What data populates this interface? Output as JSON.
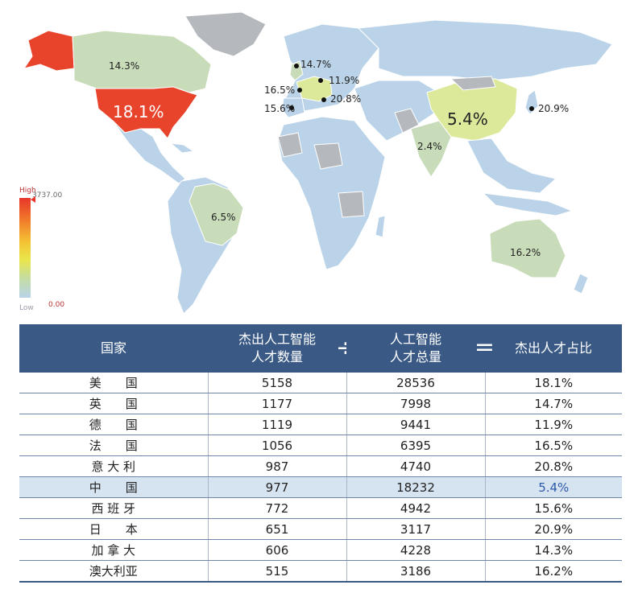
{
  "chart_data": [
    {
      "type": "map",
      "region_labels": [
        {
          "country": "美国",
          "value": "18.1%",
          "highlight": true
        },
        {
          "country": "加拿大",
          "value": "14.3%"
        },
        {
          "country": "英国",
          "value": "14.7%"
        },
        {
          "country": "德国",
          "value": "11.9%"
        },
        {
          "country": "法国",
          "value": "16.5%"
        },
        {
          "country": "意大利",
          "value": "20.8%"
        },
        {
          "country": "西班牙",
          "value": "15.6%"
        },
        {
          "country": "中国",
          "value": "5.4%"
        },
        {
          "country": "日本",
          "value": "20.9%"
        },
        {
          "country": "印度",
          "value": "2.4%"
        },
        {
          "country": "巴西",
          "value": "6.5%"
        },
        {
          "country": "澳大利亚",
          "value": "16.2%"
        }
      ],
      "legend": {
        "high_label": "High",
        "low_label": "Low",
        "max_value": "3737.00",
        "min_value": "0.00",
        "colors": [
          "#e8362a",
          "#f07a2a",
          "#f4c534",
          "#e9e64c",
          "#c5dda0",
          "#b7d3ea"
        ]
      }
    },
    {
      "type": "table",
      "columns": [
        {
          "label_lines": [
            "国家"
          ]
        },
        {
          "label_lines": [
            "杰出人工智能",
            "人才数量"
          ]
        },
        {
          "label_lines": [
            "人工智能",
            "人才总量"
          ]
        },
        {
          "label_lines": [
            "杰出人才占比"
          ]
        }
      ],
      "operators": [
        "÷",
        "="
      ],
      "rows": [
        {
          "country": "美　　国",
          "top_talent": 5158,
          "total_talent": 28536,
          "ratio": "18.1%"
        },
        {
          "country": "英　　国",
          "top_talent": 1177,
          "total_talent": 7998,
          "ratio": "14.7%"
        },
        {
          "country": "德　　国",
          "top_talent": 1119,
          "total_talent": 9441,
          "ratio": "11.9%"
        },
        {
          "country": "法　　国",
          "top_talent": 1056,
          "total_talent": 6395,
          "ratio": "16.5%"
        },
        {
          "country": "意 大 利",
          "top_talent": 987,
          "total_talent": 4740,
          "ratio": "20.8%"
        },
        {
          "country": "中　　国",
          "top_talent": 977,
          "total_talent": 18232,
          "ratio": "5.4%",
          "highlight": true
        },
        {
          "country": "西 班 牙",
          "top_talent": 772,
          "total_talent": 4942,
          "ratio": "15.6%"
        },
        {
          "country": "日　　本",
          "top_talent": 651,
          "total_talent": 3117,
          "ratio": "20.9%"
        },
        {
          "country": "加 拿 大",
          "top_talent": 606,
          "total_talent": 4228,
          "ratio": "14.3%"
        },
        {
          "country": "澳大利亚",
          "top_talent": 515,
          "total_talent": 3186,
          "ratio": "16.2%"
        }
      ],
      "highlight_color": "#d6e3f1",
      "header_color": "#3a5a85"
    }
  ]
}
